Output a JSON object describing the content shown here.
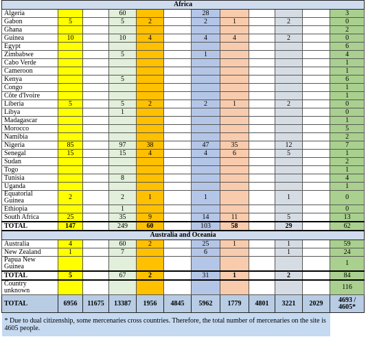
{
  "sections": [
    {
      "title": "Africa",
      "rows": [
        [
          "Algeria",
          null,
          null,
          60,
          null,
          null,
          28,
          null,
          null,
          null,
          null,
          3
        ],
        [
          "Gabon",
          5,
          null,
          5,
          2,
          null,
          2,
          1,
          null,
          2,
          null,
          0
        ],
        [
          "Ghana",
          null,
          null,
          null,
          null,
          null,
          null,
          null,
          null,
          null,
          null,
          2
        ],
        [
          "Guinea",
          10,
          null,
          10,
          4,
          null,
          4,
          4,
          null,
          2,
          null,
          0
        ],
        [
          "Egypt",
          null,
          null,
          null,
          null,
          null,
          null,
          null,
          null,
          null,
          null,
          6
        ],
        [
          "Zimbabwe",
          null,
          null,
          5,
          null,
          null,
          1,
          null,
          null,
          null,
          null,
          4
        ],
        [
          "Cabo Verde",
          null,
          null,
          null,
          null,
          null,
          null,
          null,
          null,
          null,
          null,
          1
        ],
        [
          "Cameroon",
          null,
          null,
          null,
          null,
          null,
          null,
          null,
          null,
          null,
          null,
          1
        ],
        [
          "Kenya",
          null,
          null,
          5,
          null,
          null,
          null,
          null,
          null,
          null,
          null,
          6
        ],
        [
          "Congo",
          null,
          null,
          null,
          null,
          null,
          null,
          null,
          null,
          null,
          null,
          1
        ],
        [
          "Côte d'Ivoire",
          null,
          null,
          null,
          null,
          null,
          null,
          null,
          null,
          null,
          null,
          1
        ],
        [
          "Liberia",
          5,
          null,
          5,
          2,
          null,
          2,
          1,
          null,
          2,
          null,
          0
        ],
        [
          "Libya",
          null,
          null,
          1,
          null,
          null,
          null,
          null,
          null,
          null,
          null,
          0
        ],
        [
          "Madagascar",
          null,
          null,
          null,
          null,
          null,
          null,
          null,
          null,
          null,
          null,
          1
        ],
        [
          "Morocco",
          null,
          null,
          null,
          null,
          null,
          null,
          null,
          null,
          null,
          null,
          5
        ],
        [
          "Namibia",
          null,
          null,
          null,
          null,
          null,
          null,
          null,
          null,
          null,
          null,
          2
        ],
        [
          "Nigeria",
          85,
          null,
          97,
          38,
          null,
          47,
          35,
          null,
          12,
          null,
          7
        ],
        [
          "Senegal",
          15,
          null,
          15,
          4,
          null,
          4,
          6,
          null,
          5,
          null,
          1
        ],
        [
          "Sudan",
          null,
          null,
          null,
          null,
          null,
          null,
          null,
          null,
          null,
          null,
          2
        ],
        [
          "Togo",
          null,
          null,
          null,
          null,
          null,
          null,
          null,
          null,
          null,
          null,
          1
        ],
        [
          "Tunisia",
          null,
          null,
          8,
          null,
          null,
          null,
          null,
          null,
          null,
          null,
          4
        ],
        [
          "Uganda",
          null,
          null,
          null,
          null,
          null,
          null,
          null,
          null,
          null,
          null,
          1
        ],
        [
          "Equatorial Guinea",
          2,
          null,
          2,
          1,
          null,
          1,
          null,
          null,
          1,
          null,
          0
        ],
        [
          "Ethiopia",
          null,
          null,
          1,
          null,
          null,
          null,
          null,
          null,
          null,
          null,
          0
        ],
        [
          "South Africa",
          25,
          null,
          35,
          9,
          null,
          14,
          11,
          null,
          5,
          null,
          13
        ]
      ],
      "total": [
        "TOTAL",
        147,
        null,
        249,
        60,
        null,
        103,
        58,
        null,
        29,
        null,
        62
      ]
    },
    {
      "title": "Australia and Oceania",
      "rows": [
        [
          "Australia",
          4,
          null,
          60,
          2,
          null,
          25,
          1,
          null,
          1,
          null,
          59
        ],
        [
          "New Zealand",
          1,
          null,
          7,
          null,
          null,
          6,
          null,
          null,
          1,
          null,
          24
        ],
        [
          "Papua New Guinea",
          null,
          null,
          null,
          null,
          null,
          null,
          null,
          null,
          null,
          null,
          1
        ]
      ],
      "total": [
        "TOTAL",
        5,
        null,
        67,
        2,
        null,
        31,
        1,
        null,
        2,
        null,
        84
      ]
    }
  ],
  "unknown": [
    "Country unknown",
    null,
    null,
    null,
    null,
    null,
    null,
    null,
    null,
    null,
    null,
    116
  ],
  "total": [
    "TOTAL",
    6956,
    11675,
    13387,
    1956,
    4845,
    5962,
    1779,
    4801,
    3221,
    2029,
    "4693 / 4605*"
  ],
  "footnote": "* Due to dual citizenship, some mercenaries cross countries. Therefore, the total number of mercenaries on the site is 4605 people."
}
